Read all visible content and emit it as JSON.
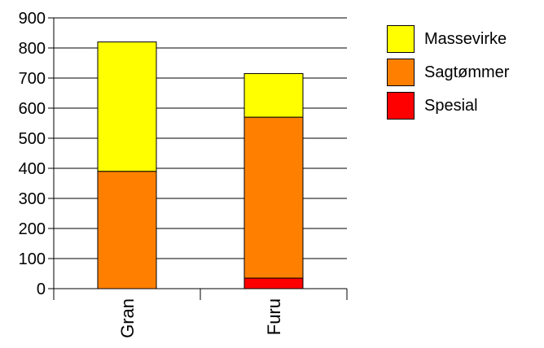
{
  "chart_data": {
    "type": "bar",
    "stacked": true,
    "categories": [
      "Gran",
      "Furu"
    ],
    "series": [
      {
        "name": "Spesial",
        "values": [
          0,
          35
        ],
        "color": "#ff0000"
      },
      {
        "name": "Sagtømmer",
        "values": [
          390,
          535
        ],
        "color": "#ff8000"
      },
      {
        "name": "Massevirke",
        "values": [
          430,
          145
        ],
        "color": "#ffff00"
      }
    ],
    "ylim": [
      0,
      900
    ],
    "yticks": [
      "0",
      "100",
      "200",
      "300",
      "400",
      "500",
      "600",
      "700",
      "800",
      "900"
    ],
    "grid": true,
    "legend_position": "right",
    "legend_order": [
      "Massevirke",
      "Sagtømmer",
      "Spesial"
    ]
  }
}
